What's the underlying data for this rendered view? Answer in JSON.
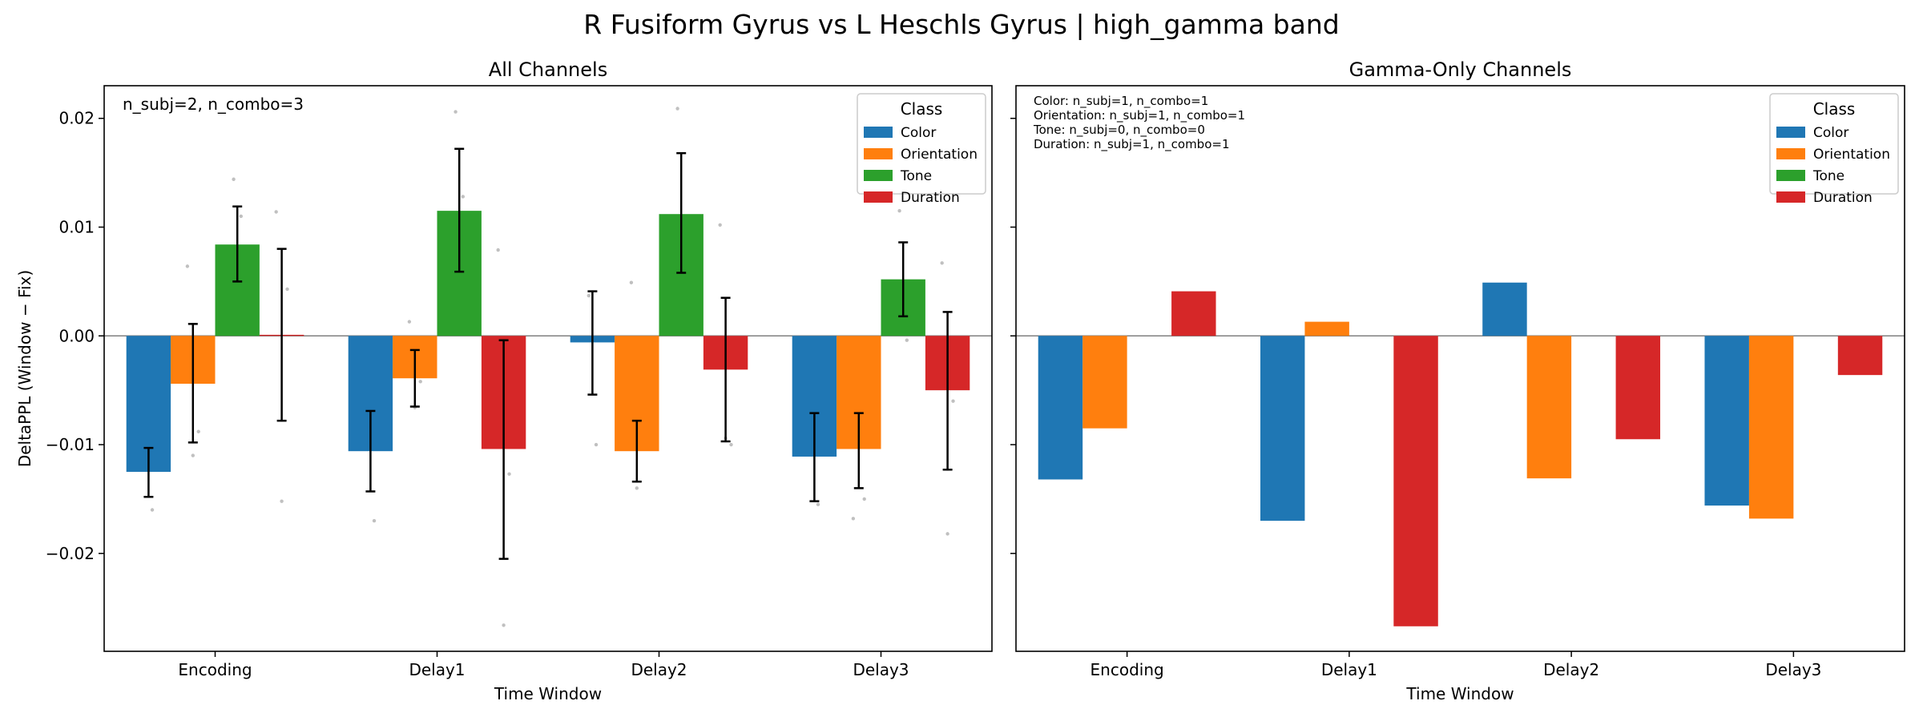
{
  "figure": {
    "suptitle": "R Fusiform Gyrus vs L Heschls Gyrus  |  high_gamma band"
  },
  "legend_title": "Class",
  "classes": [
    {
      "name": "Color",
      "color": "#1f77b4"
    },
    {
      "name": "Orientation",
      "color": "#ff7f0e"
    },
    {
      "name": "Tone",
      "color": "#2ca02c"
    },
    {
      "name": "Duration",
      "color": "#d62728"
    }
  ],
  "chart_data": [
    {
      "type": "bar",
      "title": "All Channels",
      "xlabel": "Time Window",
      "ylabel": "DeltaPPL (Window − Fix)",
      "categories": [
        "Encoding",
        "Delay1",
        "Delay2",
        "Delay3"
      ],
      "ylim": [
        -0.029,
        0.023
      ],
      "yticks": [
        -0.02,
        -0.01,
        0.0,
        0.01,
        0.02
      ],
      "ytick_labels": [
        "−0.02",
        "−0.01",
        "0.00",
        "0.01",
        "0.02"
      ],
      "legend_loc": "top-right",
      "annotation": [
        "n_subj=2, n_combo=3"
      ],
      "series": [
        {
          "name": "Color",
          "values": [
            -0.0125,
            -0.0106,
            -0.0006,
            -0.0111
          ],
          "err_low": [
            -0.0148,
            -0.0143,
            -0.0054,
            -0.0152
          ],
          "err_high": [
            -0.0103,
            -0.0069,
            0.0041,
            -0.0071
          ],
          "points": [
            [
              -0.0085,
              -0.016
            ],
            [
              -0.004,
              -0.017
            ],
            [
              0.0037,
              -0.01
            ],
            [
              -0.0028,
              -0.0155
            ]
          ]
        },
        {
          "name": "Orientation",
          "values": [
            -0.0044,
            -0.0039,
            -0.0106,
            -0.0104
          ],
          "err_low": [
            -0.0098,
            -0.0065,
            -0.0134,
            -0.014
          ],
          "err_high": [
            0.0011,
            -0.0013,
            -0.0078,
            -0.0071
          ],
          "points": [
            [
              0.0064,
              -0.011,
              -0.0088
            ],
            [
              0.0013,
              -0.0066,
              -0.0042
            ],
            [
              0.0049,
              -0.014,
              -0.005
            ],
            [
              -0.0168,
              -0.0048,
              -0.015
            ]
          ]
        },
        {
          "name": "Tone",
          "values": [
            0.0084,
            0.0115,
            0.0112,
            0.0052
          ],
          "err_low": [
            0.005,
            0.0059,
            0.0058,
            0.0018
          ],
          "err_high": [
            0.0119,
            0.0172,
            0.0168,
            0.0086
          ],
          "points": [
            [
              0.0144,
              0.011
            ],
            [
              0.0206,
              0.0128
            ],
            [
              0.0209,
              0.0105
            ],
            [
              0.0115,
              -0.0004
            ]
          ]
        },
        {
          "name": "Duration",
          "values": [
            0.0001,
            -0.0104,
            -0.0031,
            -0.005
          ],
          "err_low": [
            -0.0078,
            -0.0205,
            -0.0097,
            -0.0123
          ],
          "err_high": [
            0.008,
            -0.0004,
            0.0035,
            0.0022
          ],
          "points": [
            [
              0.0114,
              -0.0152,
              0.0043
            ],
            [
              0.0079,
              -0.0266,
              -0.0127
            ],
            [
              0.0102,
              -0.0094,
              -0.01
            ],
            [
              0.0067,
              -0.0182,
              -0.006
            ]
          ]
        }
      ]
    },
    {
      "type": "bar",
      "title": "Gamma-Only Channels",
      "xlabel": "Time Window",
      "ylabel": "",
      "categories": [
        "Encoding",
        "Delay1",
        "Delay2",
        "Delay3"
      ],
      "ylim": [
        -0.029,
        0.023
      ],
      "yticks": [
        -0.02,
        -0.01,
        0.0,
        0.01,
        0.02
      ],
      "ytick_labels": [
        "",
        "",
        "",
        "",
        ""
      ],
      "legend_loc": "top-right",
      "annotation": [
        "Color: n_subj=1, n_combo=1",
        "Orientation: n_subj=1, n_combo=1",
        "Tone: n_subj=0, n_combo=0",
        "Duration: n_subj=1, n_combo=1"
      ],
      "series": [
        {
          "name": "Color",
          "values": [
            -0.0132,
            -0.017,
            0.0049,
            -0.0156
          ]
        },
        {
          "name": "Orientation",
          "values": [
            -0.0085,
            0.0013,
            -0.0131,
            -0.0168
          ]
        },
        {
          "name": "Tone",
          "values": [
            null,
            null,
            null,
            null
          ]
        },
        {
          "name": "Duration",
          "values": [
            0.0041,
            -0.0267,
            -0.0095,
            -0.0036
          ]
        }
      ]
    }
  ]
}
